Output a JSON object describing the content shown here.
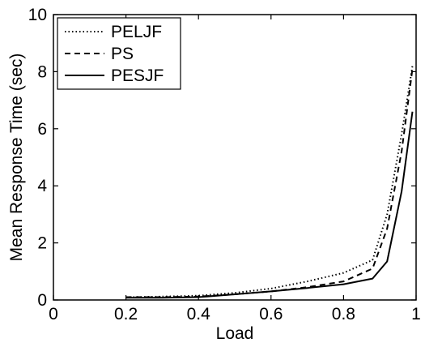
{
  "chart_data": {
    "type": "line",
    "title": "",
    "xlabel": "Load",
    "ylabel": "Mean Response Time (sec)",
    "xlim": [
      0,
      1
    ],
    "ylim": [
      0,
      10
    ],
    "xticks": [
      0,
      0.2,
      0.4,
      0.6,
      0.8,
      1
    ],
    "xtick_labels": [
      "0",
      "0.2",
      "0.4",
      "0.6",
      "0.8",
      "1"
    ],
    "yticks": [
      0,
      2,
      4,
      6,
      8,
      10
    ],
    "ytick_labels": [
      "0",
      "2",
      "4",
      "6",
      "8",
      "10"
    ],
    "grid": false,
    "legend_position": "top-left",
    "series": [
      {
        "name": "PELJF",
        "style": "dotted",
        "color": "#000000",
        "x": [
          0.2,
          0.3,
          0.4,
          0.5,
          0.6,
          0.7,
          0.8,
          0.88,
          0.92,
          0.96,
          0.99
        ],
        "y": [
          0.1,
          0.12,
          0.15,
          0.25,
          0.4,
          0.65,
          0.95,
          1.4,
          3.0,
          5.8,
          8.2
        ]
      },
      {
        "name": "PS",
        "style": "dashed",
        "color": "#000000",
        "x": [
          0.2,
          0.3,
          0.4,
          0.5,
          0.6,
          0.7,
          0.8,
          0.88,
          0.92,
          0.96,
          0.99
        ],
        "y": [
          0.1,
          0.1,
          0.12,
          0.2,
          0.3,
          0.45,
          0.65,
          1.1,
          2.5,
          5.2,
          8.1
        ]
      },
      {
        "name": "PESJF",
        "style": "solid",
        "color": "#000000",
        "x": [
          0.2,
          0.3,
          0.4,
          0.5,
          0.6,
          0.7,
          0.8,
          0.88,
          0.92,
          0.96,
          0.99
        ],
        "y": [
          0.08,
          0.08,
          0.1,
          0.2,
          0.3,
          0.42,
          0.55,
          0.75,
          1.35,
          3.8,
          6.6
        ]
      }
    ]
  }
}
